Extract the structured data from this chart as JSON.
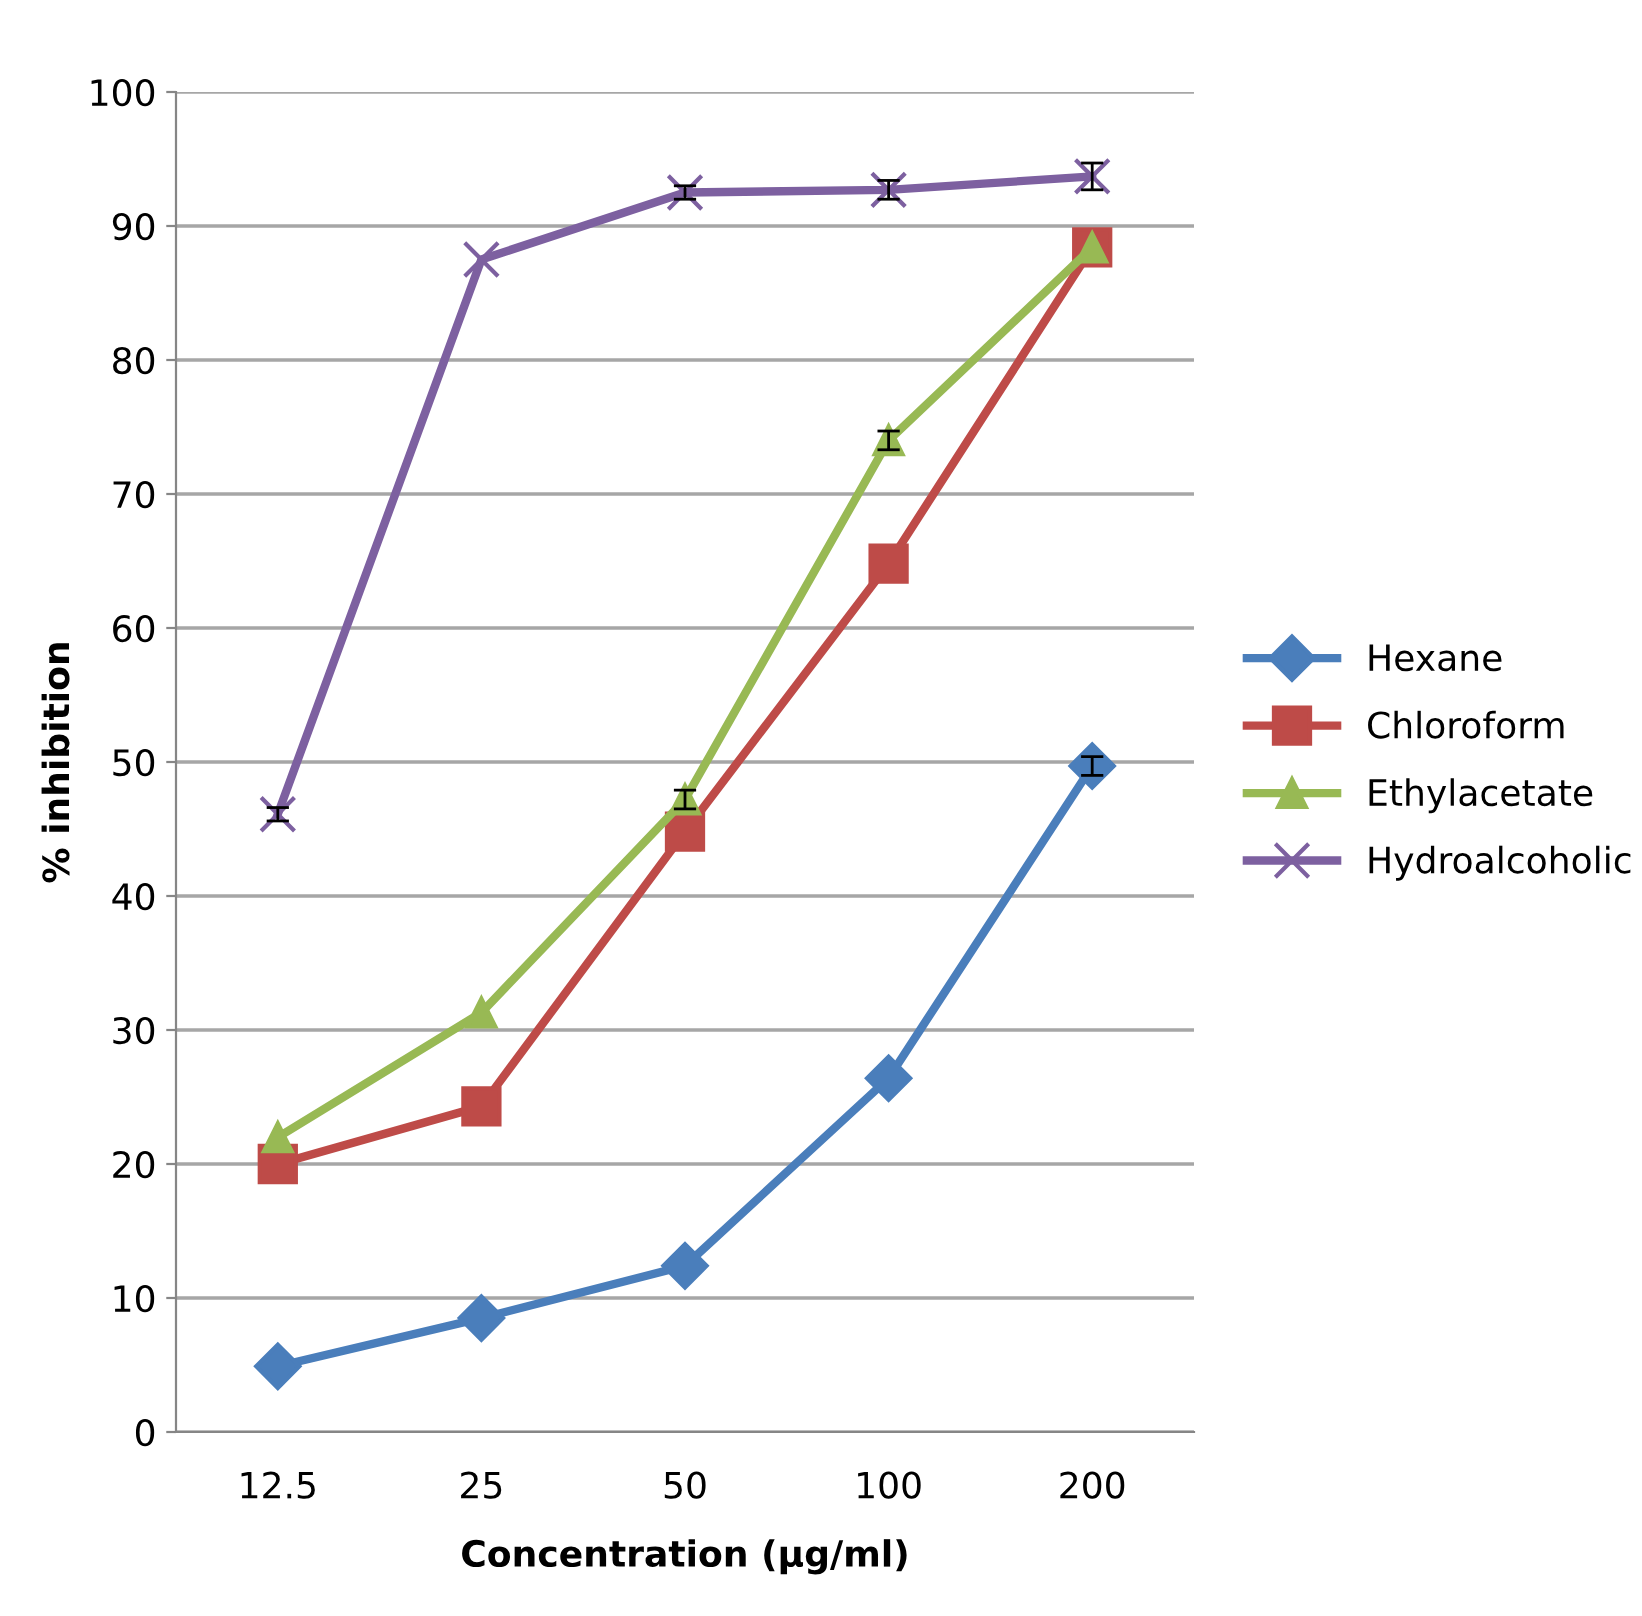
{
  "chart_data": {
    "type": "line",
    "xlabel": "Concentration (µg/ml)",
    "ylabel": "% inhibition",
    "categories": [
      "12.5",
      "25",
      "50",
      "100",
      "200"
    ],
    "series": [
      {
        "name": "Hexane",
        "color": "#4a7ebb",
        "marker": "diamond",
        "values": [
          4.9,
          8.5,
          12.4,
          26.4,
          49.7
        ],
        "errors": [
          null,
          null,
          null,
          null,
          0.7
        ]
      },
      {
        "name": "Chloroform",
        "color": "#be4b48",
        "marker": "square",
        "values": [
          20.0,
          24.3,
          44.8,
          64.8,
          88.4
        ]
      },
      {
        "name": "Ethylacetate",
        "color": "#98b954",
        "marker": "triangle",
        "values": [
          22.0,
          31.3,
          47.2,
          74.0,
          88.4
        ],
        "errors": [
          null,
          null,
          0.7,
          0.7,
          null
        ]
      },
      {
        "name": "Hydroalcoholic",
        "color": "#7d60a0",
        "marker": "cross",
        "values": [
          46.1,
          87.5,
          92.5,
          92.7,
          93.7
        ],
        "errors": [
          0.5,
          null,
          0.5,
          0.7,
          1.0
        ]
      }
    ],
    "ylim": [
      0,
      100
    ],
    "yticks": [
      0,
      10,
      20,
      30,
      40,
      50,
      60,
      70,
      80,
      90,
      100
    ],
    "grid": "y",
    "legend": "right",
    "line_style": "solid"
  }
}
